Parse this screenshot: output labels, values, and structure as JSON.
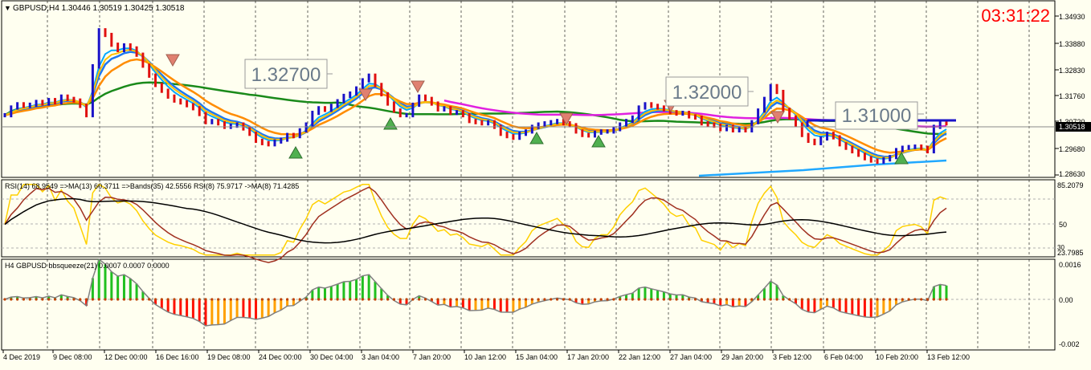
{
  "header": {
    "symbol_line": "GBPUSD,H4  1.30446 1.30519 1.30425 1.30518",
    "clock": "03:31:22"
  },
  "colors": {
    "background": "#fffff0",
    "bull_bar": "#1a12c8",
    "bear_bar": "#e01010",
    "ma_fast_blue": "#00a8ff",
    "ma_slow_blue": "#1e78f0",
    "ma_gold": "#ffc000",
    "ma_orange": "#ff8c00",
    "ma_green": "#1a8a1a",
    "ma_magenta": "#e020e0",
    "clock": "#ff0000",
    "rsi_yellow": "#ffd000",
    "rsi_brown": "#a03020",
    "rsi_black": "#000000",
    "hist_green": "#20c020",
    "hist_orange": "#ffa000",
    "hist_red": "#ff1000"
  },
  "price_panel": {
    "last_price_label": "1.30518",
    "axis_ticks": [
      "1.34930",
      "1.33880",
      "1.32830",
      "1.31760",
      "1.30720",
      "1.29680",
      "1.28630"
    ],
    "level_labels": [
      "1.32700",
      "1.32000",
      "1.31000"
    ]
  },
  "rsi_panel": {
    "header": "RSI(14) 68.9549  =>MA(13) 60.3711  =>Bands(35) 42.5556  RSI(8) 75.9717  ->MA(8) 71.4285",
    "axis_ticks": [
      "85.2079",
      "50",
      "30",
      "23.7985"
    ]
  },
  "squeeze_panel": {
    "header": "H4 GBPUSD bbsqueeze(21) 0.0007 0.0007 0.0000",
    "axis_ticks": [
      "0.0016",
      "0.00",
      "-0.002"
    ]
  },
  "time_axis": {
    "labels": [
      "4 Dec 2019",
      "9 Dec 08:00",
      "12 Dec 00:00",
      "16 Dec 16:00",
      "19 Dec 08:00",
      "24 Dec 00:00",
      "30 Dec 04:00",
      "3 Jan 04:00",
      "7 Jan 20:00",
      "10 Jan 12:00",
      "15 Jan 04:00",
      "17 Jan 20:00",
      "22 Jan 12:00",
      "27 Jan 04:00",
      "29 Jan 20:00",
      "3 Feb 12:00",
      "6 Feb 04:00",
      "10 Feb 20:00",
      "13 Feb 12:00"
    ]
  },
  "chart_data": {
    "type": "candlestick",
    "symbol": "GBPUSD",
    "timeframe": "H4",
    "ylim": [
      1.2835,
      1.3525
    ],
    "last": 1.30518,
    "levels": [
      1.327,
      1.32,
      1.31
    ],
    "closes": [
      1.3085,
      1.3118,
      1.3132,
      1.3125,
      1.313,
      1.3142,
      1.3135,
      1.315,
      1.314,
      1.3165,
      1.3155,
      1.3148,
      1.3125,
      1.3085,
      1.3295,
      1.345,
      1.343,
      1.3388,
      1.3365,
      1.3385,
      1.3372,
      1.3345,
      1.3298,
      1.3255,
      1.3215,
      1.319,
      1.3165,
      1.3148,
      1.314,
      1.3128,
      1.3115,
      1.309,
      1.3055,
      1.306,
      1.305,
      1.3035,
      1.304,
      1.3045,
      1.3028,
      1.3005,
      1.2975,
      1.2965,
      1.296,
      1.2972,
      1.298,
      1.3,
      1.2995,
      1.302,
      1.3045,
      1.3095,
      1.3115,
      1.3108,
      1.3125,
      1.3145,
      1.3168,
      1.3178,
      1.32,
      1.3235,
      1.3255,
      1.3215,
      1.3175,
      1.3135,
      1.3105,
      1.3085,
      1.3085,
      1.313,
      1.3165,
      1.3155,
      1.3135,
      1.311,
      1.3115,
      1.3095,
      1.3098,
      1.3085,
      1.306,
      1.3055,
      1.305,
      1.3055,
      1.3035,
      1.3005,
      1.2995,
      1.2988,
      1.3005,
      1.3015,
      1.3035,
      1.3045,
      1.305,
      1.3055,
      1.306,
      1.305,
      1.3042,
      1.3015,
      1.3,
      1.2998,
      1.301,
      1.3015,
      1.3015,
      1.3025,
      1.3045,
      1.306,
      1.3075,
      1.3118,
      1.3132,
      1.3125,
      1.3118,
      1.311,
      1.3098,
      1.3092,
      1.3095,
      1.308,
      1.3075,
      1.305,
      1.3045,
      1.304,
      1.3025,
      1.3035,
      1.302,
      1.3025,
      1.302,
      1.3055,
      1.3105,
      1.3155,
      1.321,
      1.3185,
      1.3108,
      1.3075,
      1.3045,
      1.3,
      1.2975,
      1.2965,
      1.2985,
      1.3005,
      1.299,
      1.296,
      1.2945,
      1.293,
      1.2915,
      1.29,
      1.289,
      1.2885,
      1.2895,
      1.2905,
      1.2935,
      1.2945,
      1.2948,
      1.295,
      1.2945,
      1.293,
      1.3035,
      1.3055,
      1.305
    ]
  }
}
